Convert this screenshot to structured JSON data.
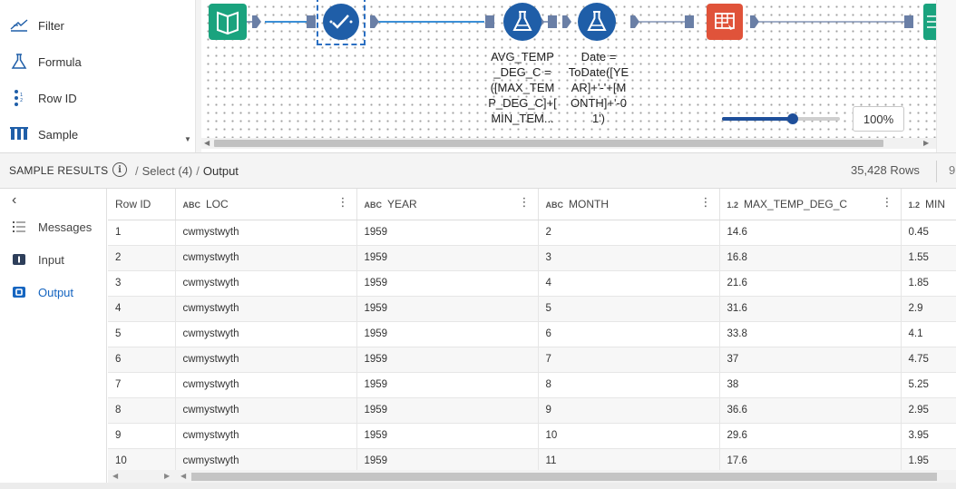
{
  "palette": {
    "items": [
      {
        "label": "Filter",
        "icon": "filter-icon"
      },
      {
        "label": "Formula",
        "icon": "formula-icon"
      },
      {
        "label": "Row ID",
        "icon": "row-id-icon"
      },
      {
        "label": "Sample",
        "icon": "sample-icon"
      }
    ]
  },
  "canvas": {
    "nodes": [
      {
        "name": "input-data-tool",
        "icon": "book-icon",
        "color": "#1aa37e",
        "label_lines": []
      },
      {
        "name": "select-tool",
        "icon": "checkmark-icon",
        "color": "#1f5ea8",
        "selected": true,
        "label_lines": []
      },
      {
        "name": "formula-tool-avg-temp",
        "icon": "flask-icon",
        "color": "#1f5ea8",
        "label_lines": [
          "AVG_TEMP",
          "_DEG_C =",
          "([MAX_TEM",
          "P_DEG_C]+[",
          "MIN_TEM..."
        ]
      },
      {
        "name": "formula-tool-date",
        "icon": "flask-icon",
        "color": "#1f5ea8",
        "label_lines": [
          "Date =",
          "ToDate([YE",
          "AR]+'-'+[M",
          "ONTH]+'-0",
          "1')"
        ]
      },
      {
        "name": "table-tool",
        "icon": "table-icon",
        "color": "#e0533a",
        "label_lines": []
      },
      {
        "name": "output-tool",
        "icon": "output-icon",
        "color": "#1aa37e",
        "label_lines": []
      }
    ],
    "zoom": {
      "label": "100%",
      "level": 0.6
    }
  },
  "results": {
    "title": "SAMPLE RESULTS",
    "breadcrumb": [
      "Select (4)",
      "Output"
    ],
    "row_count": "35,428 Rows",
    "right_clip": "9"
  },
  "nav": {
    "items": [
      {
        "label": "Messages",
        "icon": "list-icon",
        "active": false
      },
      {
        "label": "Input",
        "icon": "input-icon",
        "active": false
      },
      {
        "label": "Output",
        "icon": "output-icon",
        "active": true
      }
    ]
  },
  "grid": {
    "columns": [
      {
        "label": "Row ID",
        "type": ""
      },
      {
        "label": "LOC",
        "type": "ABC"
      },
      {
        "label": "YEAR",
        "type": "ABC"
      },
      {
        "label": "MONTH",
        "type": "ABC"
      },
      {
        "label": "MAX_TEMP_DEG_C",
        "type": "1.2"
      },
      {
        "label": "MIN",
        "type": "1.2"
      }
    ],
    "rows": [
      [
        "1",
        "cwmystwyth",
        "1959",
        "2",
        "14.6",
        "0.45"
      ],
      [
        "2",
        "cwmystwyth",
        "1959",
        "3",
        "16.8",
        "1.55"
      ],
      [
        "3",
        "cwmystwyth",
        "1959",
        "4",
        "21.6",
        "1.85"
      ],
      [
        "4",
        "cwmystwyth",
        "1959",
        "5",
        "31.6",
        "2.9"
      ],
      [
        "5",
        "cwmystwyth",
        "1959",
        "6",
        "33.8",
        "4.1"
      ],
      [
        "6",
        "cwmystwyth",
        "1959",
        "7",
        "37",
        "4.75"
      ],
      [
        "7",
        "cwmystwyth",
        "1959",
        "8",
        "38",
        "5.25"
      ],
      [
        "8",
        "cwmystwyth",
        "1959",
        "9",
        "36.6",
        "2.95"
      ],
      [
        "9",
        "cwmystwyth",
        "1959",
        "10",
        "29.6",
        "3.95"
      ],
      [
        "10",
        "cwmystwyth",
        "1959",
        "11",
        "17.6",
        "1.95"
      ]
    ]
  }
}
